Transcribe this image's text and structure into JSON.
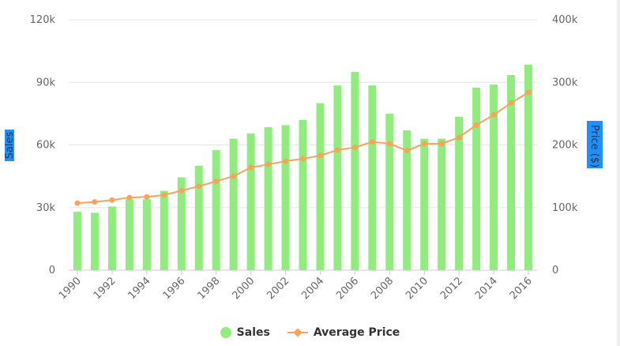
{
  "chart_data": {
    "type": "bar+line",
    "title": "",
    "categories": [
      "1990",
      "1991",
      "1992",
      "1993",
      "1994",
      "1995",
      "1996",
      "1997",
      "1998",
      "1999",
      "2000",
      "2001",
      "2002",
      "2003",
      "2004",
      "2005",
      "2006",
      "2007",
      "2008",
      "2009",
      "2010",
      "2011",
      "2012",
      "2013",
      "2014",
      "2015",
      "2016"
    ],
    "x_tick_labels": [
      "1990",
      "1992",
      "1994",
      "1996",
      "1998",
      "2000",
      "2002",
      "2004",
      "2006",
      "2008",
      "2010",
      "2012",
      "2014",
      "2016"
    ],
    "series": [
      {
        "name": "Sales",
        "type": "bar",
        "axis": "left",
        "color": "#90ed7d",
        "values": [
          28000,
          27500,
          30500,
          34000,
          34000,
          38000,
          44500,
          50000,
          57500,
          63000,
          65500,
          68500,
          69500,
          72000,
          80000,
          88500,
          95000,
          88500,
          75000,
          67000,
          63000,
          63000,
          73500,
          87500,
          89000,
          93500,
          98500
        ]
      },
      {
        "name": "Average Price",
        "type": "line",
        "axis": "right",
        "color": "#f7a35c",
        "values": [
          107000,
          109000,
          112000,
          116000,
          117000,
          120000,
          127000,
          134000,
          142000,
          150000,
          164000,
          169000,
          174000,
          178000,
          183000,
          192000,
          196000,
          205000,
          202000,
          191000,
          202000,
          202000,
          212000,
          232000,
          248000,
          267000,
          284000
        ]
      }
    ],
    "y_left": {
      "label": "Sales",
      "range": [
        0,
        120000
      ],
      "ticks": [
        0,
        30000,
        60000,
        90000,
        120000
      ],
      "tick_labels": [
        "0",
        "30k",
        "60k",
        "90k",
        "120k"
      ]
    },
    "y_right": {
      "label": "Price ($)",
      "range": [
        0,
        400000
      ],
      "ticks": [
        0,
        100000,
        200000,
        300000,
        400000
      ],
      "tick_labels": [
        "0",
        "100k",
        "200k",
        "300k",
        "400k"
      ]
    },
    "grid": true,
    "legend": {
      "position": "bottom-center",
      "items": [
        "Sales",
        "Average Price"
      ]
    },
    "colors": {
      "grid": "#e6e6e6",
      "axis_label_bg": "#1e90ff",
      "axis_label_text": "#333333"
    }
  }
}
